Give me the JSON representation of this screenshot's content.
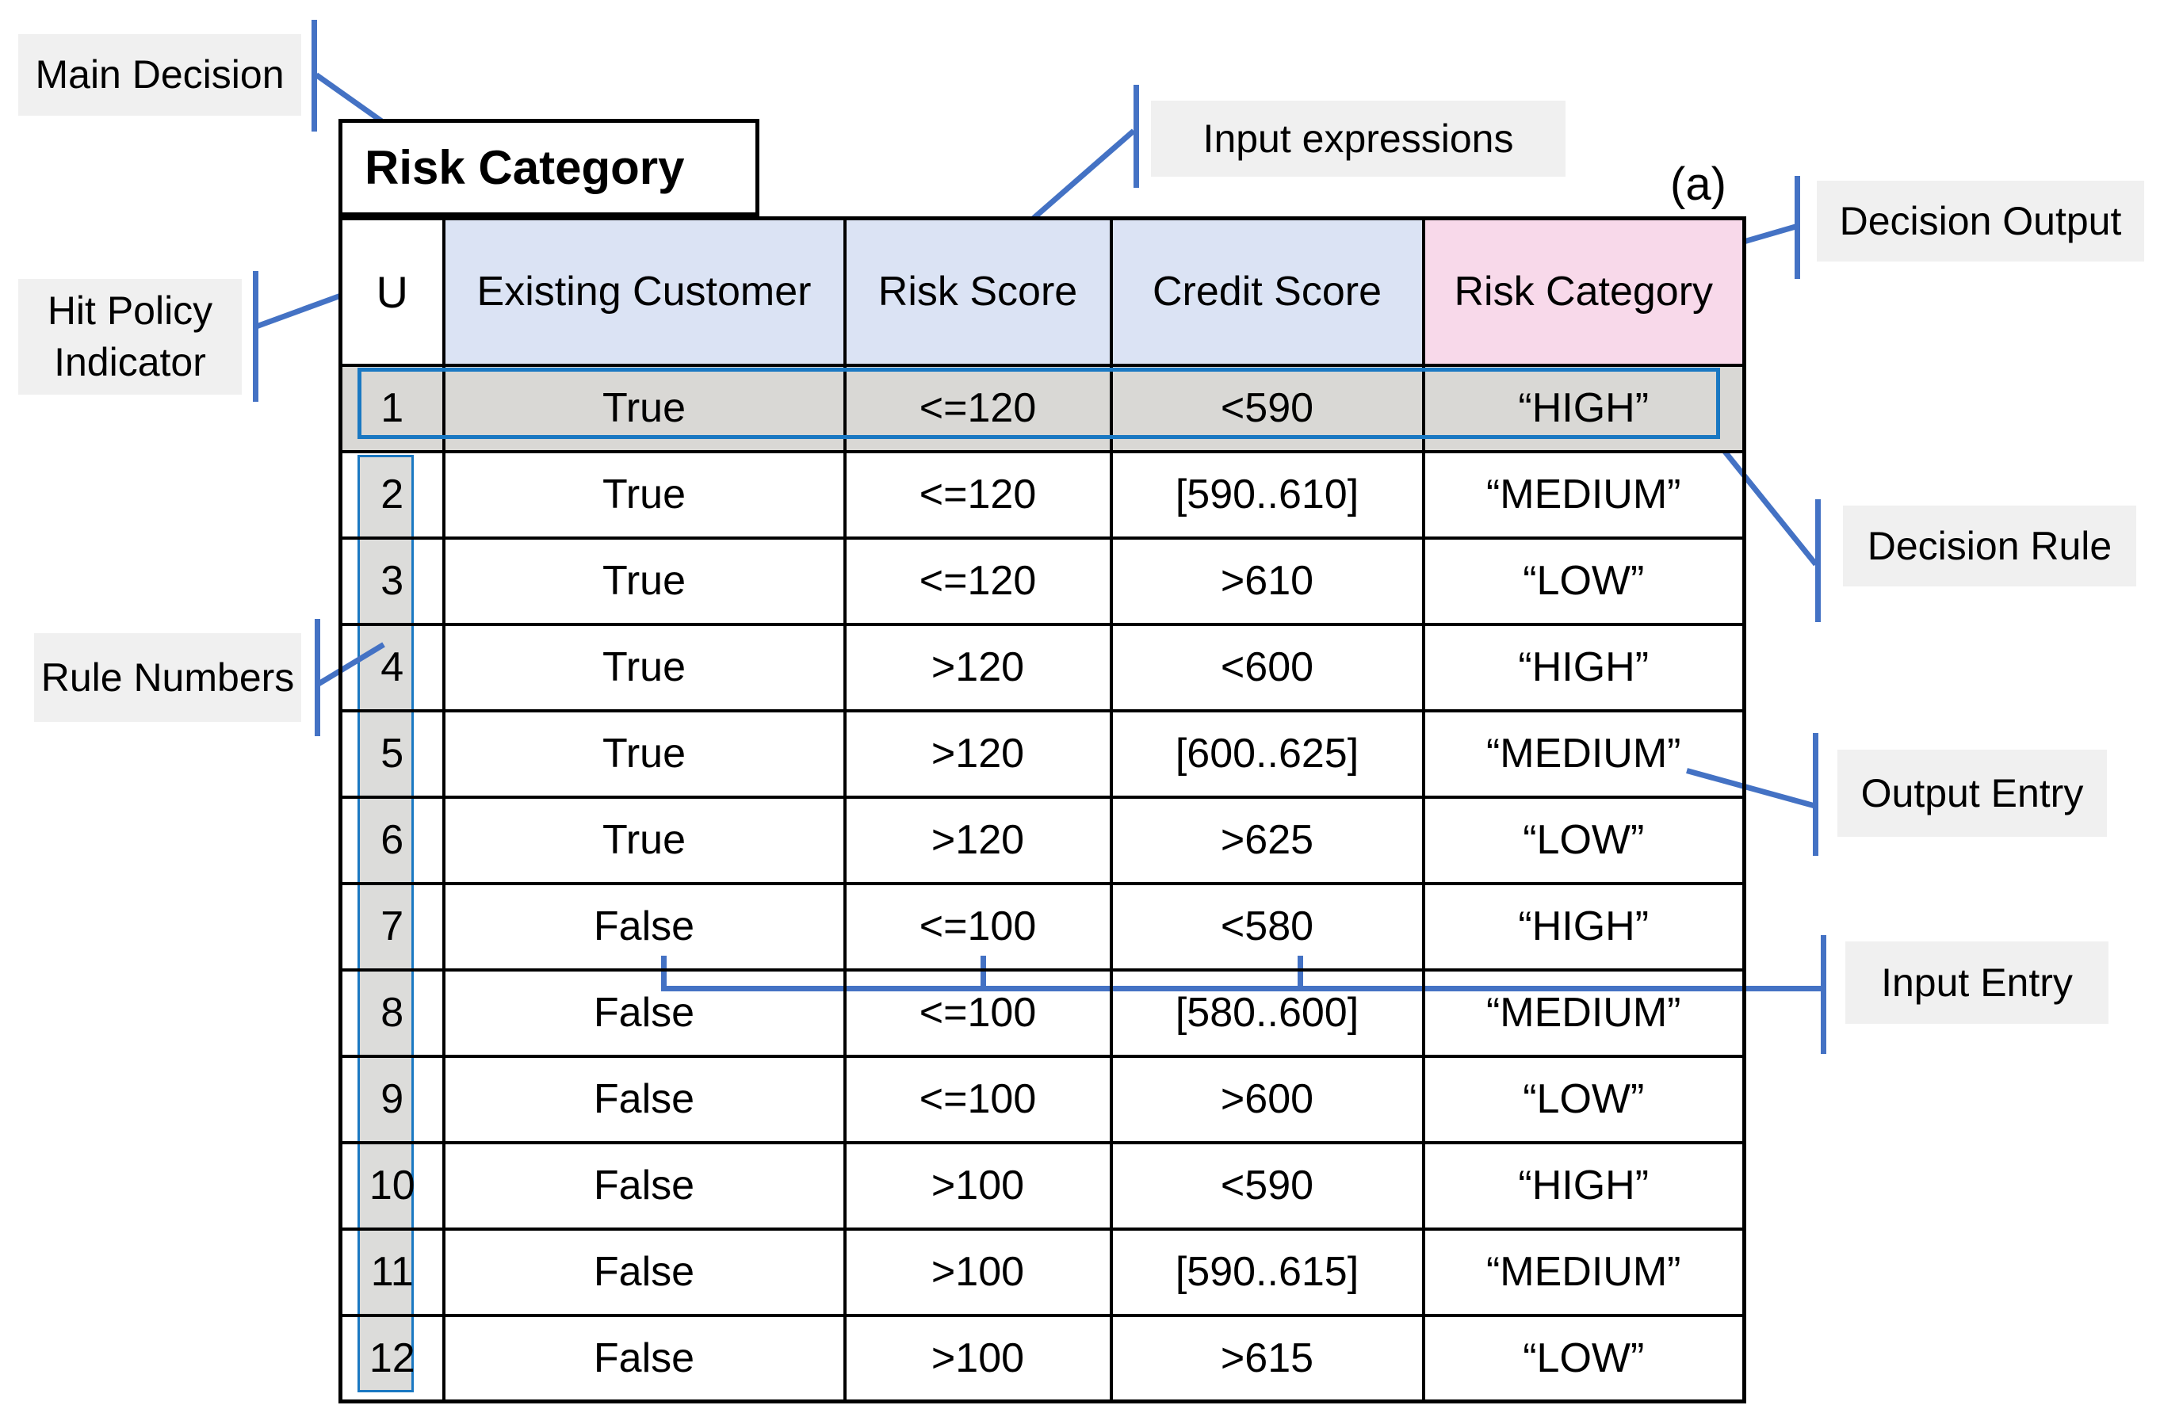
{
  "figure_label": "(a)",
  "annotations": {
    "main_decision": "Main Decision",
    "hit_policy_line1": "Hit Policy",
    "hit_policy_line2": "Indicator",
    "rule_numbers": "Rule Numbers",
    "input_expressions": "Input expressions",
    "decision_output": "Decision Output",
    "decision_rule": "Decision Rule",
    "output_entry": "Output Entry",
    "input_entry": "Input Entry"
  },
  "table": {
    "title": "Risk Category",
    "hit_policy": "U",
    "columns": [
      "Existing Customer",
      "Risk Score",
      "Credit Score",
      "Risk Category"
    ],
    "rules": [
      {
        "n": "1",
        "existing_customer": "True",
        "risk_score": "<=120",
        "credit_score": "<590",
        "risk_category": "“HIGH”"
      },
      {
        "n": "2",
        "existing_customer": "True",
        "risk_score": "<=120",
        "credit_score": "[590..610]",
        "risk_category": "“MEDIUM”"
      },
      {
        "n": "3",
        "existing_customer": "True",
        "risk_score": "<=120",
        "credit_score": ">610",
        "risk_category": "“LOW”"
      },
      {
        "n": "4",
        "existing_customer": "True",
        "risk_score": ">120",
        "credit_score": "<600",
        "risk_category": "“HIGH”"
      },
      {
        "n": "5",
        "existing_customer": "True",
        "risk_score": ">120",
        "credit_score": "[600..625]",
        "risk_category": "“MEDIUM”"
      },
      {
        "n": "6",
        "existing_customer": "True",
        "risk_score": ">120",
        "credit_score": ">625",
        "risk_category": "“LOW”"
      },
      {
        "n": "7",
        "existing_customer": "False",
        "risk_score": "<=100",
        "credit_score": "<580",
        "risk_category": "“HIGH”"
      },
      {
        "n": "8",
        "existing_customer": "False",
        "risk_score": "<=100",
        "credit_score": "[580..600]",
        "risk_category": "“MEDIUM”"
      },
      {
        "n": "9",
        "existing_customer": "False",
        "risk_score": "<=100",
        "credit_score": ">600",
        "risk_category": "“LOW”"
      },
      {
        "n": "10",
        "existing_customer": "False",
        "risk_score": ">100",
        "credit_score": "<590",
        "risk_category": "“HIGH”"
      },
      {
        "n": "11",
        "existing_customer": "False",
        "risk_score": ">100",
        "credit_score": "[590..615]",
        "risk_category": "“MEDIUM”"
      },
      {
        "n": "12",
        "existing_customer": "False",
        "risk_score": ">100",
        "credit_score": ">615",
        "risk_category": "“LOW”"
      }
    ]
  },
  "colors": {
    "callout_blue": "#4472c4",
    "highlight_blue": "#1a78c2",
    "input_header_fill": "#dbe3f4",
    "output_header_fill": "#f8d9ea",
    "highlight_row_fill": "#d9d8d5",
    "rule_number_strip_fill": "#dcdcda",
    "label_background": "#f0f0f0",
    "table_border": "#000000"
  }
}
